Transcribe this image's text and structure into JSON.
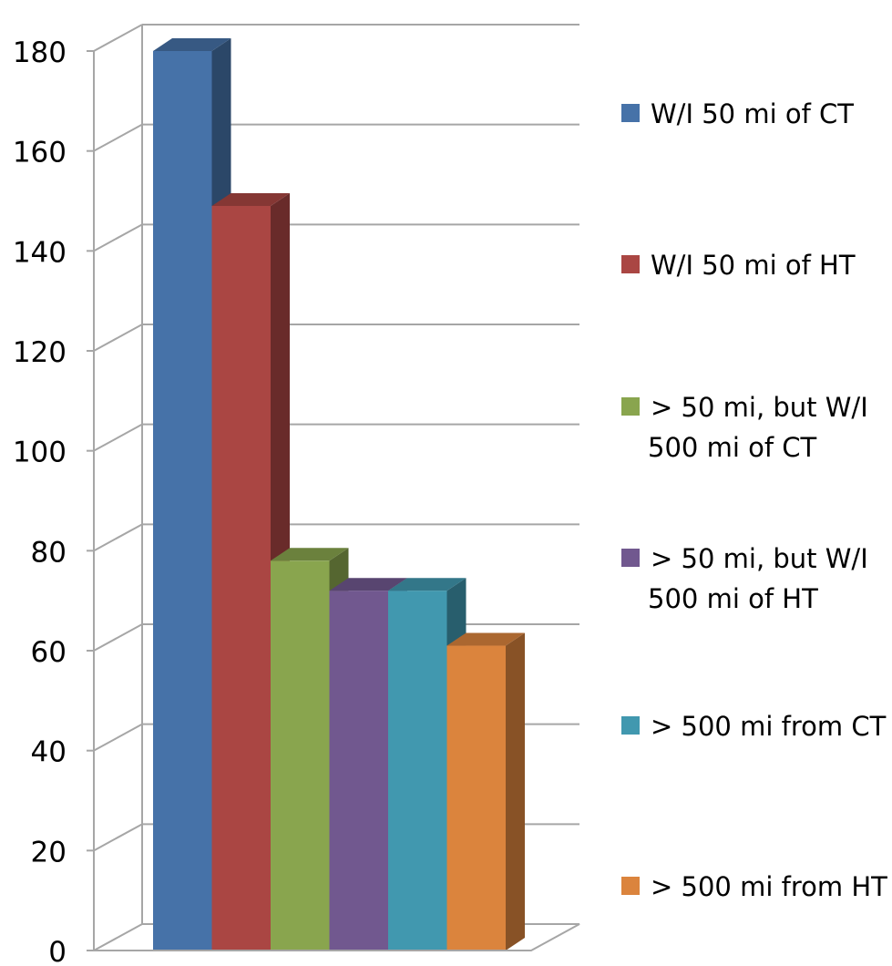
{
  "chart_data": {
    "type": "bar",
    "title": "",
    "xlabel": "",
    "ylabel": "",
    "ylim": [
      0,
      180
    ],
    "ticks": [
      0,
      20,
      40,
      60,
      80,
      100,
      120,
      140,
      160,
      180
    ],
    "grid": true,
    "legend_position": "right",
    "series": [
      {
        "name": "W/I 50 mi of CT",
        "value": 180,
        "color": "#4672A8"
      },
      {
        "name": "W/I 50 mi of HT",
        "value": 149,
        "color": "#AA4643"
      },
      {
        "name": "> 50 mi, but W/I 500 mi of CT",
        "value": 78,
        "color": "#89A54E"
      },
      {
        "name": "> 50 mi, but W/I 500 mi of HT",
        "value": 72,
        "color": "#71588F"
      },
      {
        "name": "> 500 mi from CT",
        "value": 72,
        "color": "#4198AF"
      },
      {
        "name": "> 500 mi from HT",
        "value": 61,
        "color": "#DB843D"
      }
    ]
  }
}
